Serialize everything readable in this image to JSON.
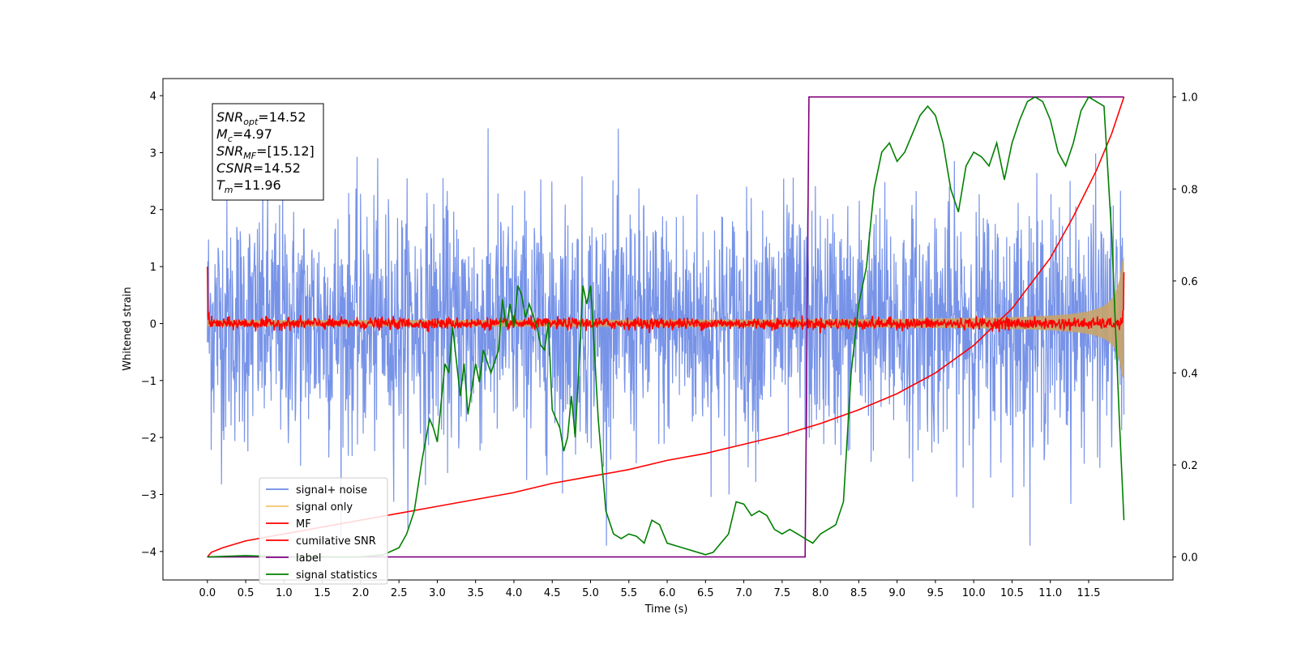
{
  "chart_data": {
    "type": "line",
    "title": "",
    "xlabel": "Time (s)",
    "ylabel": "Whitened strain",
    "xlim": [
      -0.58,
      12.6
    ],
    "ylim": [
      -4.5,
      4.3
    ],
    "y2lim": [
      -0.05,
      1.04
    ],
    "x_ticks": [
      "0.0",
      "0.5",
      "1.0",
      "1.5",
      "2.0",
      "2.5",
      "3.0",
      "3.5",
      "4.0",
      "4.5",
      "5.0",
      "5.5",
      "6.0",
      "6.5",
      "7.0",
      "7.5",
      "8.0",
      "8.5",
      "9.0",
      "9.5",
      "10.0",
      "10.5",
      "11.0",
      "11.5"
    ],
    "y_ticks": [
      "4",
      "3",
      "2",
      "1",
      "0",
      "−1",
      "−2",
      "−3",
      "−4"
    ],
    "y2_ticks": [
      "1.0",
      "0.8",
      "0.6",
      "0.4",
      "0.2",
      "0.0"
    ],
    "annotation": [
      {
        "base": "SNR",
        "sub": "opt",
        "rest": "=14.52"
      },
      {
        "base": "M",
        "sub": "c",
        "rest": "=4.97"
      },
      {
        "base": "SNR",
        "sub": "MF",
        "rest": "=[15.12]"
      },
      {
        "base": "CSNR",
        "sub": "",
        "rest": "=14.52"
      },
      {
        "base": "T",
        "sub": "m",
        "rest": "=11.96"
      }
    ],
    "legend": {
      "position": "lower-left",
      "entries": [
        {
          "label": "signal+ noise",
          "color": "#6b8ae6"
        },
        {
          "label": "signal only",
          "color": "#f5c36b"
        },
        {
          "label": "MF",
          "color": "#ff0000"
        },
        {
          "label": "cumilative SNR",
          "color": "#ff0000"
        },
        {
          "label": "label",
          "color": "#800080"
        },
        {
          "label": "signal statistics",
          "color": "#008000"
        }
      ]
    },
    "series": [
      {
        "name": "signal+ noise",
        "axis": "left",
        "color": "#6b8ae6",
        "style": "white noise, amplitude approx ±2 with peaks to ±3.9",
        "x_range": [
          0.0,
          11.96
        ]
      },
      {
        "name": "signal only",
        "axis": "left",
        "color": "#f5c36b",
        "style": "chirp envelope growing from ±0.05 to ±1.5 near 11.9 s",
        "x_range": [
          0.0,
          11.96
        ]
      },
      {
        "name": "MF",
        "axis": "left",
        "color": "#ff0000",
        "style": "flat near 0, spike to 1.0 at 0 s and 0.9 at 11.96 s",
        "x_range": [
          0.0,
          11.96
        ]
      },
      {
        "name": "cumilative SNR",
        "axis": "right",
        "color": "#ff0000",
        "x": [
          0.0,
          0.05,
          0.2,
          0.5,
          1.0,
          1.5,
          2.0,
          2.5,
          3.0,
          3.5,
          4.0,
          4.5,
          5.0,
          5.5,
          6.0,
          6.5,
          7.0,
          7.5,
          8.0,
          8.5,
          9.0,
          9.5,
          10.0,
          10.5,
          11.0,
          11.3,
          11.6,
          11.8,
          11.96
        ],
        "y": [
          0.0,
          0.01,
          0.02,
          0.035,
          0.05,
          0.065,
          0.08,
          0.095,
          0.11,
          0.125,
          0.14,
          0.16,
          0.175,
          0.19,
          0.21,
          0.225,
          0.245,
          0.265,
          0.29,
          0.32,
          0.355,
          0.4,
          0.46,
          0.54,
          0.65,
          0.74,
          0.84,
          0.92,
          1.0
        ]
      },
      {
        "name": "label",
        "axis": "right",
        "color": "#800080",
        "x": [
          0.0,
          7.8,
          7.85,
          11.96
        ],
        "y": [
          0.0,
          0.0,
          1.0,
          1.0
        ]
      },
      {
        "name": "signal statistics",
        "axis": "right",
        "color": "#008000",
        "x": [
          0.0,
          0.5,
          1.0,
          1.5,
          2.0,
          2.3,
          2.5,
          2.6,
          2.7,
          2.8,
          2.9,
          2.95,
          3.0,
          3.1,
          3.15,
          3.2,
          3.3,
          3.35,
          3.4,
          3.5,
          3.55,
          3.6,
          3.7,
          3.8,
          3.85,
          3.9,
          3.95,
          4.0,
          4.05,
          4.1,
          4.15,
          4.2,
          4.3,
          4.35,
          4.4,
          4.45,
          4.5,
          4.6,
          4.65,
          4.7,
          4.75,
          4.8,
          4.9,
          4.95,
          5.0,
          5.05,
          5.1,
          5.15,
          5.2,
          5.3,
          5.4,
          5.5,
          5.6,
          5.7,
          5.8,
          5.9,
          6.0,
          6.2,
          6.4,
          6.5,
          6.6,
          6.8,
          6.9,
          7.0,
          7.1,
          7.2,
          7.3,
          7.4,
          7.5,
          7.6,
          7.7,
          7.8,
          7.9,
          8.0,
          8.1,
          8.2,
          8.3,
          8.4,
          8.5,
          8.6,
          8.7,
          8.8,
          8.9,
          9.0,
          9.1,
          9.2,
          9.3,
          9.4,
          9.5,
          9.6,
          9.7,
          9.8,
          9.9,
          10.0,
          10.1,
          10.2,
          10.3,
          10.4,
          10.5,
          10.6,
          10.7,
          10.8,
          10.9,
          11.0,
          11.1,
          11.2,
          11.3,
          11.4,
          11.5,
          11.6,
          11.7,
          11.8,
          11.9,
          11.96
        ],
        "y": [
          0.0,
          0.003,
          0.0,
          0.0,
          0.0,
          0.005,
          0.02,
          0.05,
          0.1,
          0.21,
          0.3,
          0.28,
          0.25,
          0.42,
          0.4,
          0.5,
          0.35,
          0.42,
          0.31,
          0.42,
          0.38,
          0.45,
          0.4,
          0.45,
          0.56,
          0.5,
          0.55,
          0.5,
          0.59,
          0.57,
          0.52,
          0.55,
          0.5,
          0.46,
          0.45,
          0.51,
          0.32,
          0.28,
          0.23,
          0.26,
          0.35,
          0.26,
          0.59,
          0.55,
          0.59,
          0.45,
          0.3,
          0.2,
          0.1,
          0.05,
          0.04,
          0.05,
          0.045,
          0.03,
          0.08,
          0.07,
          0.03,
          0.02,
          0.01,
          0.005,
          0.01,
          0.05,
          0.12,
          0.115,
          0.09,
          0.1,
          0.09,
          0.06,
          0.05,
          0.06,
          0.05,
          0.04,
          0.03,
          0.05,
          0.06,
          0.07,
          0.12,
          0.4,
          0.55,
          0.63,
          0.8,
          0.88,
          0.9,
          0.86,
          0.88,
          0.92,
          0.96,
          0.98,
          0.96,
          0.9,
          0.8,
          0.75,
          0.85,
          0.88,
          0.87,
          0.85,
          0.9,
          0.82,
          0.9,
          0.95,
          0.99,
          1.0,
          0.99,
          0.95,
          0.88,
          0.85,
          0.9,
          0.97,
          1.0,
          0.99,
          0.98,
          0.7,
          0.3,
          0.08
        ]
      }
    ]
  }
}
